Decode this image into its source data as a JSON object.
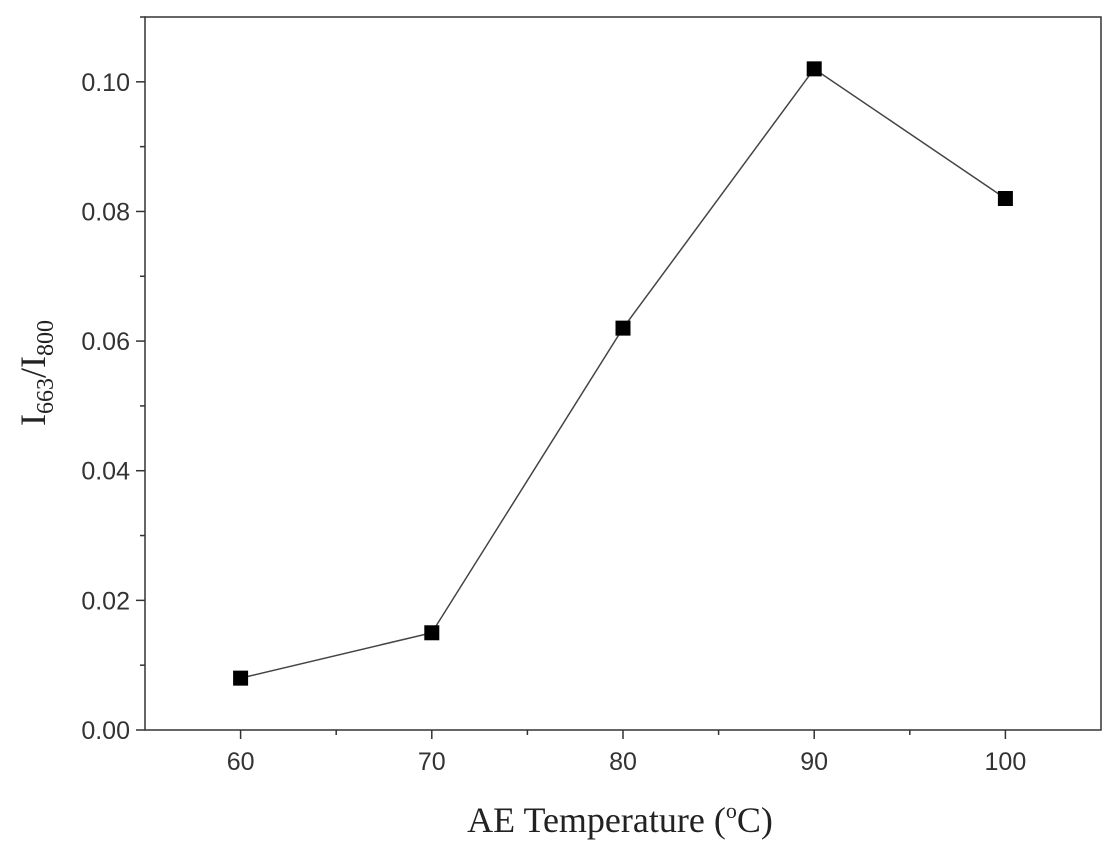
{
  "chart_data": {
    "type": "line",
    "xlabel": "AE Temperature (",
    "xlabel_degree": "o",
    "xlabel_unit": "C)",
    "ylabel_main": "I",
    "ylabel_sub1": "663",
    "ylabel_slash": "/I",
    "ylabel_sub2": "800",
    "xlim": [
      55,
      105
    ],
    "ylim": [
      0.0,
      0.11
    ],
    "x_ticks": [
      60,
      70,
      80,
      90,
      100
    ],
    "x_tick_labels": [
      "60",
      "70",
      "80",
      "90",
      "100"
    ],
    "y_ticks": [
      0.0,
      0.02,
      0.04,
      0.06,
      0.08,
      0.1
    ],
    "y_tick_labels": [
      "0.00",
      "0.02",
      "0.04",
      "0.06",
      "0.08",
      "0.10"
    ],
    "grid": false,
    "marker": "square",
    "series": [
      {
        "x": [
          60,
          70,
          80,
          90,
          100
        ],
        "y": [
          0.008,
          0.015,
          0.062,
          0.102,
          0.082
        ],
        "color": "#000000"
      }
    ]
  }
}
